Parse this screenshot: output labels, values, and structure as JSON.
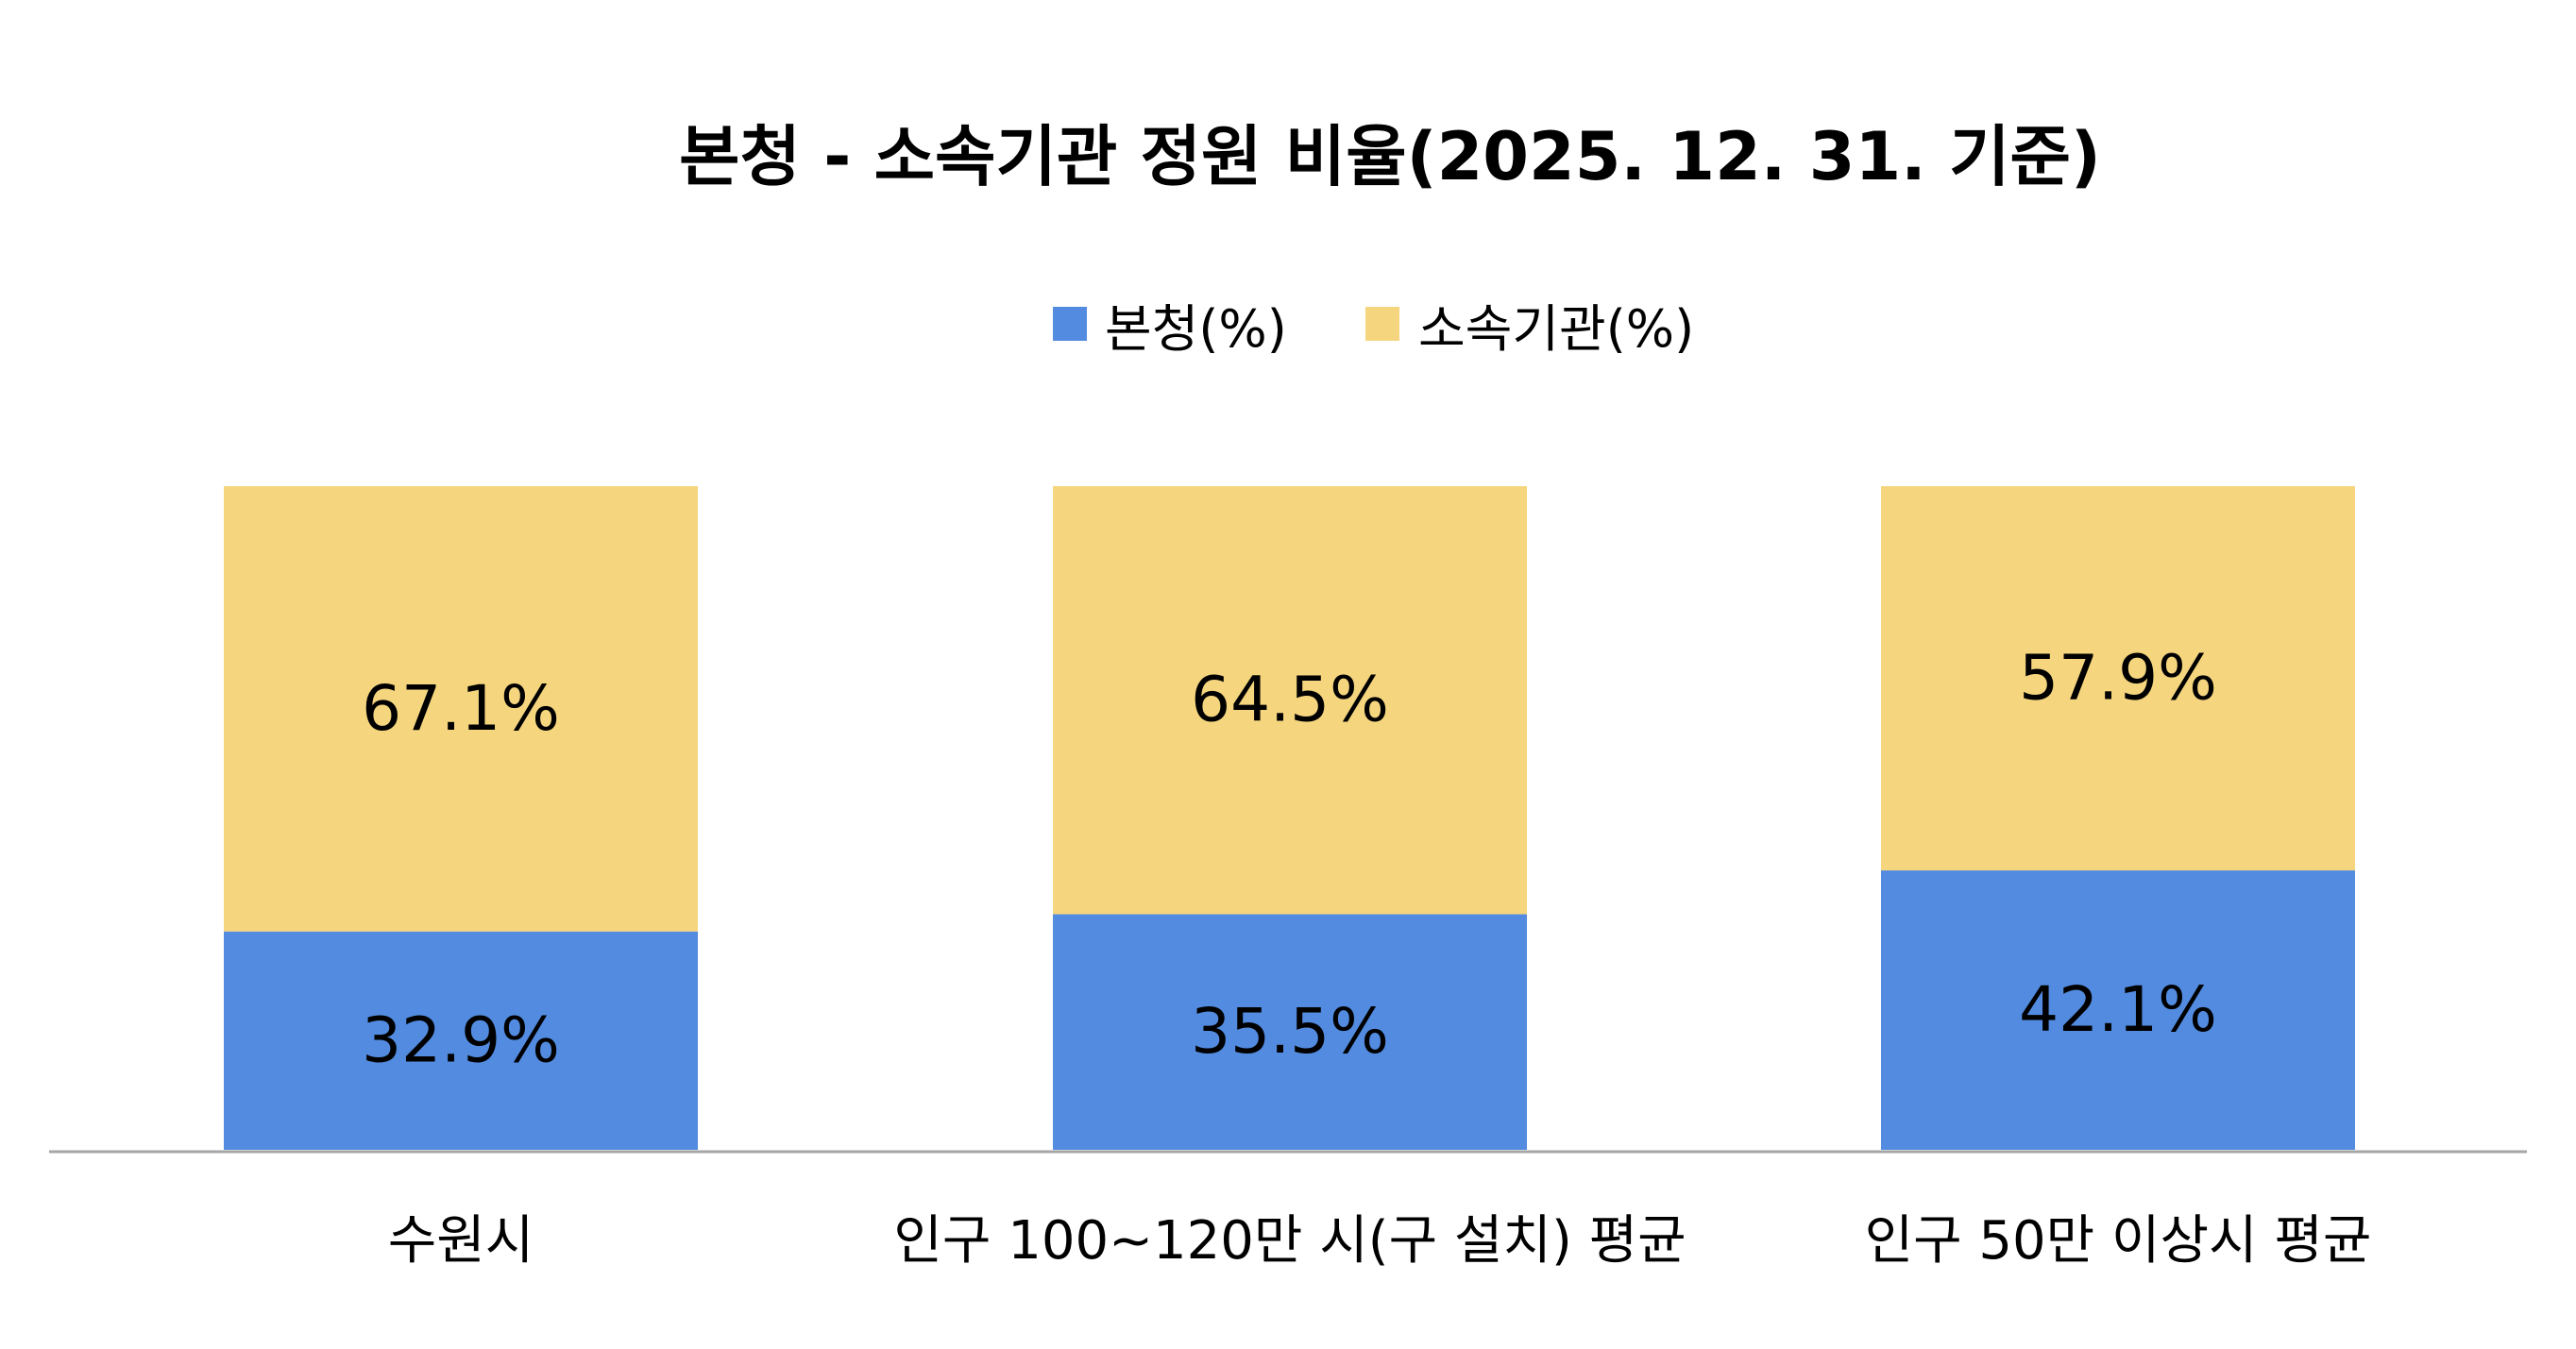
{
  "chart_data": {
    "type": "bar",
    "stacked": true,
    "percent_stacked": true,
    "title": "본청 - 소속기관 정원 비율(2025. 12. 31. 기준)",
    "categories": [
      "수원시",
      "인구 100~120만 시(구 설치) 평균",
      "인구 50만 이상시 평균"
    ],
    "series": [
      {
        "name": "본청(%)",
        "color": "#528BE0",
        "values": [
          32.9,
          35.5,
          42.1
        ],
        "labels": [
          "32.9%",
          "35.5%",
          "42.1%"
        ]
      },
      {
        "name": "소속기관(%)",
        "color": "#F5D57E",
        "values": [
          67.1,
          64.5,
          57.9
        ],
        "labels": [
          "67.1%",
          "64.5%",
          "57.9%"
        ]
      }
    ],
    "ylim": [
      0,
      100
    ],
    "grid": false,
    "legend": "top-center",
    "axis_color": "#A6A6A6"
  }
}
